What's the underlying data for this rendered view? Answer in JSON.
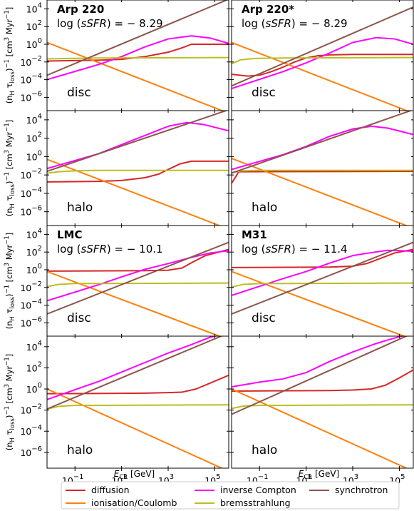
{
  "chart_data": {
    "type": "line",
    "x_axis": {
      "label_main": "E",
      "label_sub": "CR",
      "label_unit": " [GeV]",
      "scale": "log",
      "range_log10": [
        -2.2,
        5.6
      ],
      "ticks": [
        {
          "base": "10",
          "exp": "−1",
          "pos": -1
        },
        {
          "base": "10",
          "exp": "1",
          "pos": 1
        },
        {
          "base": "10",
          "exp": "3",
          "pos": 3
        },
        {
          "base": "10",
          "exp": "5",
          "pos": 5
        }
      ]
    },
    "y_axis": {
      "label_open": "(n",
      "label_sub1": "H",
      "label_tau": " τ",
      "label_sub2": "loss",
      "label_mid": ")",
      "label_sup1": "−1",
      "label_unit": " [cm",
      "label_sup2": "3",
      "label_unit2": " Myr",
      "label_sup3": "−1",
      "label_close": "]",
      "scale": "log",
      "range_log10": [
        -7.5,
        5
      ],
      "ticks": [
        {
          "base": "10",
          "exp": "4",
          "pos": 4
        },
        {
          "base": "10",
          "exp": "2",
          "pos": 2
        },
        {
          "base": "10",
          "exp": "0",
          "pos": 0
        },
        {
          "base": "10",
          "exp": "−2",
          "pos": -2
        },
        {
          "base": "10",
          "exp": "−4",
          "pos": -4
        },
        {
          "base": "10",
          "exp": "−6",
          "pos": -6
        }
      ]
    },
    "series_styles": [
      {
        "key": "diffusion",
        "name": "diffusion",
        "color": "#d62728"
      },
      {
        "key": "ionisation",
        "name": "ionisation/Coulomb",
        "color": "#ff7f0e"
      },
      {
        "key": "ic",
        "name": "inverse Compton",
        "color": "#ff00ff"
      },
      {
        "key": "brems",
        "name": "bremsstrahlung",
        "color": "#bcbd22"
      },
      {
        "key": "sync",
        "name": "synchrotron",
        "color": "#8c564b"
      }
    ],
    "panels": [
      {
        "id": "arp220-disc",
        "col": 0,
        "row": 0,
        "galaxy": "Arp 220",
        "sfr_prefix": "log (",
        "sfr_var": "sSFR",
        "sfr_suffix": ") = − 8.29",
        "region": "disc",
        "series": {
          "diffusion": [
            [
              -2.2,
              -1.9
            ],
            [
              0,
              -1.8
            ],
            [
              1,
              -1.7
            ],
            [
              2,
              -1.4
            ],
            [
              3,
              -0.9
            ],
            [
              3.6,
              -0.4
            ],
            [
              4.0,
              0.0
            ],
            [
              5.6,
              0.0
            ]
          ],
          "ionisation": [
            [
              -2.2,
              0.2
            ],
            [
              5.6,
              -7.8
            ]
          ],
          "ic": [
            [
              -2.2,
              -4.0
            ],
            [
              0,
              -2.3
            ],
            [
              1,
              -1.4
            ],
            [
              2,
              -0.3
            ],
            [
              3,
              0.6
            ],
            [
              4,
              0.95
            ],
            [
              4.8,
              0.7
            ],
            [
              5.6,
              0.1
            ]
          ],
          "brems": [
            [
              -2.2,
              -1.65
            ],
            [
              -1.2,
              -1.6
            ],
            [
              0,
              -1.55
            ],
            [
              5.6,
              -1.5
            ]
          ],
          "sync": [
            [
              -2.2,
              -3.5
            ],
            [
              5.6,
              5.1
            ]
          ]
        }
      },
      {
        "id": "arp220star-disc",
        "col": 1,
        "row": 0,
        "galaxy": "Arp 220*",
        "sfr_prefix": "log (",
        "sfr_var": "sSFR",
        "sfr_suffix": ") = − 8.29",
        "region": "disc",
        "series": {
          "diffusion": [
            [
              -2.2,
              -3.4
            ],
            [
              -1.5,
              -3.6
            ],
            [
              -1,
              -3.5
            ],
            [
              -0.5,
              -3.1
            ],
            [
              0,
              -2.6
            ],
            [
              0.5,
              -2.0
            ],
            [
              1,
              -1.55
            ],
            [
              1.5,
              -1.3
            ],
            [
              2,
              -1.2
            ],
            [
              3,
              -1.15
            ],
            [
              5.6,
              -1.15
            ]
          ],
          "ionisation": [
            [
              -2.2,
              0.2
            ],
            [
              5.6,
              -7.8
            ]
          ],
          "ic": [
            [
              -2.2,
              -5.0
            ],
            [
              0,
              -3.1
            ],
            [
              1,
              -2.1
            ],
            [
              2,
              -1.0
            ],
            [
              3,
              0.2
            ],
            [
              4,
              0.75
            ],
            [
              4.8,
              0.6
            ],
            [
              5.6,
              0.0
            ]
          ],
          "brems": [
            [
              -2.2,
              -2.2
            ],
            [
              -1.8,
              -1.75
            ],
            [
              -1.2,
              -1.6
            ],
            [
              0,
              -1.55
            ],
            [
              5.6,
              -1.5
            ]
          ],
          "sync": [
            [
              -2.2,
              -4.7
            ],
            [
              5.6,
              4.2
            ]
          ]
        }
      },
      {
        "id": "arp220-halo",
        "col": 0,
        "row": 1,
        "galaxy": "",
        "sfr_prefix": "",
        "sfr_var": "",
        "sfr_suffix": "",
        "region": "halo",
        "series": {
          "diffusion": [
            [
              -2.2,
              -2.75
            ],
            [
              0,
              -2.7
            ],
            [
              1,
              -2.6
            ],
            [
              2,
              -2.3
            ],
            [
              2.6,
              -1.9
            ],
            [
              3,
              -1.4
            ],
            [
              3.5,
              -0.8
            ],
            [
              4,
              -0.5
            ],
            [
              5.6,
              -0.5
            ]
          ],
          "ionisation": [
            [
              -2.2,
              -0.3
            ],
            [
              5.6,
              -7.9
            ]
          ],
          "ic": [
            [
              -2.2,
              -1.3
            ],
            [
              0,
              0.3
            ],
            [
              1,
              1.3
            ],
            [
              2,
              2.3
            ],
            [
              3,
              3.3
            ],
            [
              3.8,
              3.7
            ],
            [
              4.5,
              3.5
            ],
            [
              5.6,
              2.8
            ]
          ],
          "brems": [
            [
              -2.2,
              -1.8
            ],
            [
              -1.7,
              -1.65
            ],
            [
              -1,
              -1.55
            ],
            [
              0,
              -1.5
            ],
            [
              5.6,
              -1.5
            ]
          ],
          "sync": [
            [
              -2.2,
              -1.6
            ],
            [
              5.6,
              5.1
            ]
          ]
        }
      },
      {
        "id": "arp220star-halo",
        "col": 1,
        "row": 1,
        "galaxy": "",
        "sfr_prefix": "",
        "sfr_var": "",
        "sfr_suffix": "",
        "region": "halo",
        "series": {
          "diffusion": [
            [
              -2.2,
              -2.9
            ],
            [
              -2.0,
              -2.1
            ],
            [
              -1.9,
              -1.65
            ],
            [
              5.6,
              -1.6
            ]
          ],
          "ionisation": [
            [
              -2.2,
              -0.2
            ],
            [
              5.6,
              -7.8
            ]
          ],
          "ic": [
            [
              -2.2,
              -1.4
            ],
            [
              0,
              0.2
            ],
            [
              1,
              1.1
            ],
            [
              2,
              2.2
            ],
            [
              3,
              3.0
            ],
            [
              3.8,
              3.3
            ],
            [
              4.5,
              3.1
            ],
            [
              5.6,
              2.4
            ]
          ],
          "brems": [
            [
              -2.2,
              -1.75
            ],
            [
              -1.8,
              -1.55
            ],
            [
              -1,
              -1.5
            ],
            [
              5.6,
              -1.5
            ]
          ],
          "sync": [
            [
              -2.2,
              -1.8
            ],
            [
              5.6,
              5.1
            ]
          ]
        }
      },
      {
        "id": "lmc-disc",
        "col": 0,
        "row": 2,
        "galaxy": "LMC",
        "sfr_prefix": "log (",
        "sfr_var": "sSFR",
        "sfr_suffix": ") = − 10.1",
        "region": "disc",
        "series": {
          "diffusion": [
            [
              -2.2,
              -0.15
            ],
            [
              2,
              -0.1
            ],
            [
              3,
              -0.05
            ],
            [
              3.6,
              0.2
            ],
            [
              4,
              0.8
            ],
            [
              4.6,
              1.6
            ],
            [
              5.6,
              2.3
            ]
          ],
          "ionisation": [
            [
              -2.2,
              -0.2
            ],
            [
              5.6,
              -7.9
            ]
          ],
          "ic": [
            [
              -2.2,
              -3.5
            ],
            [
              0,
              -1.7
            ],
            [
              1,
              -0.8
            ],
            [
              2,
              0.05
            ],
            [
              3,
              0.7
            ],
            [
              4,
              1.4
            ],
            [
              4.8,
              1.9
            ],
            [
              5.6,
              2.15
            ]
          ],
          "brems": [
            [
              -2.2,
              -1.9
            ],
            [
              -1.7,
              -1.65
            ],
            [
              -1,
              -1.55
            ],
            [
              0,
              -1.55
            ],
            [
              5.6,
              -1.5
            ]
          ],
          "sync": [
            [
              -2.2,
              -5.0
            ],
            [
              5.6,
              3.1
            ]
          ]
        }
      },
      {
        "id": "m31-disc",
        "col": 1,
        "row": 2,
        "galaxy": "M31",
        "sfr_prefix": "log (",
        "sfr_var": "sSFR",
        "sfr_suffix": ") = − 11.4",
        "region": "disc",
        "series": {
          "diffusion": [
            [
              -2.2,
              0.25
            ],
            [
              2,
              0.3
            ],
            [
              3,
              0.4
            ],
            [
              3.6,
              0.7
            ],
            [
              4.2,
              1.3
            ],
            [
              4.8,
              1.9
            ],
            [
              5.6,
              2.3
            ]
          ],
          "ionisation": [
            [
              -2.2,
              -0.2
            ],
            [
              5.6,
              -7.9
            ]
          ],
          "ic": [
            [
              -2.2,
              -2.9
            ],
            [
              0,
              -1.0
            ],
            [
              1,
              -0.2
            ],
            [
              2,
              0.75
            ],
            [
              3,
              1.6
            ],
            [
              3.7,
              1.9
            ],
            [
              4.5,
              2.2
            ],
            [
              5.6,
              2.1
            ]
          ],
          "brems": [
            [
              -2.2,
              -1.95
            ],
            [
              -1.7,
              -1.65
            ],
            [
              -1,
              -1.55
            ],
            [
              0,
              -1.55
            ],
            [
              5.6,
              -1.5
            ]
          ],
          "sync": [
            [
              -2.2,
              -5.0
            ],
            [
              5.6,
              3.1
            ]
          ]
        }
      },
      {
        "id": "lmc-halo",
        "col": 0,
        "row": 3,
        "galaxy": "",
        "sfr_prefix": "",
        "sfr_var": "",
        "sfr_suffix": "",
        "region": "halo",
        "series": {
          "diffusion": [
            [
              -2.2,
              -0.45
            ],
            [
              2,
              -0.4
            ],
            [
              3,
              -0.35
            ],
            [
              3.6,
              -0.3
            ],
            [
              4.2,
              0.0
            ],
            [
              4.8,
              0.55
            ],
            [
              5.6,
              1.3
            ]
          ],
          "ionisation": [
            [
              -2.2,
              0.0
            ],
            [
              5.6,
              -7.8
            ]
          ],
          "ic": [
            [
              -2.2,
              -1.0
            ],
            [
              0,
              0.7
            ],
            [
              1,
              1.6
            ],
            [
              2,
              2.5
            ],
            [
              3,
              3.4
            ],
            [
              4,
              4.2
            ],
            [
              4.8,
              4.9
            ],
            [
              5.6,
              5.3
            ]
          ],
          "brems": [
            [
              -2.2,
              -1.9
            ],
            [
              -1.7,
              -1.65
            ],
            [
              -1,
              -1.55
            ],
            [
              0,
              -1.55
            ],
            [
              5.6,
              -1.5
            ]
          ],
          "sync": [
            [
              -2.2,
              -1.9
            ],
            [
              5.6,
              5.3
            ]
          ]
        }
      },
      {
        "id": "m31-halo",
        "col": 1,
        "row": 3,
        "galaxy": "",
        "sfr_prefix": "",
        "sfr_var": "",
        "sfr_suffix": "",
        "region": "halo",
        "series": {
          "diffusion": [
            [
              -2.2,
              -0.2
            ],
            [
              2,
              -0.15
            ],
            [
              3,
              -0.1
            ],
            [
              3.8,
              0.0
            ],
            [
              4.4,
              0.35
            ],
            [
              5.0,
              1.05
            ],
            [
              5.6,
              1.8
            ]
          ],
          "ionisation": [
            [
              -2.2,
              0.0
            ],
            [
              5.6,
              -7.8
            ]
          ],
          "ic": [
            [
              -2.2,
              0.2
            ],
            [
              -1,
              0.65
            ],
            [
              0,
              0.95
            ],
            [
              1,
              1.55
            ],
            [
              2,
              2.6
            ],
            [
              3,
              3.5
            ],
            [
              4,
              4.3
            ],
            [
              4.6,
              4.7
            ],
            [
              5.6,
              5.3
            ]
          ],
          "brems": [
            [
              -2.2,
              -1.85
            ],
            [
              -1.7,
              -1.62
            ],
            [
              -1,
              -1.55
            ],
            [
              0,
              -1.55
            ],
            [
              5.6,
              -1.5
            ]
          ],
          "sync": [
            [
              -2.2,
              -2.4
            ],
            [
              5.6,
              5.3
            ]
          ]
        }
      }
    ],
    "legend": {
      "placement": "bottom",
      "entries": [
        "diffusion",
        "ionisation/Coulomb",
        "inverse Compton",
        "bremsstrahlung",
        "synchrotron"
      ]
    }
  }
}
